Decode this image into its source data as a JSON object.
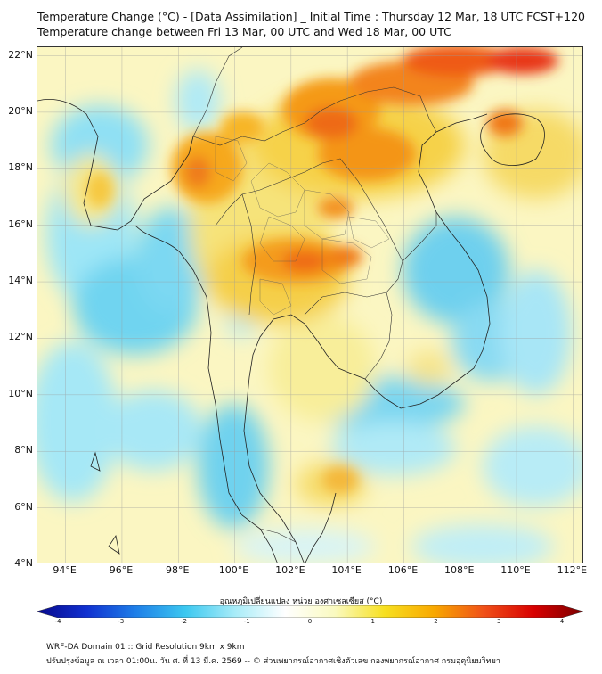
{
  "title_line1": "Temperature Change (°C) - [Data Assimilation] _ Initial Time : Thursday 12 Mar, 18 UTC FCST+120",
  "title_line2": "Temperature change between Fri 13 Mar, 00 UTC and Wed 18 Mar, 00 UTC",
  "map": {
    "lat_labels": [
      "22°N",
      "20°N",
      "18°N",
      "16°N",
      "14°N",
      "12°N",
      "10°N",
      "8°N",
      "6°N",
      "4°N"
    ],
    "lon_labels": [
      "94°E",
      "96°E",
      "98°E",
      "100°E",
      "102°E",
      "104°E",
      "106°E",
      "108°E",
      "110°E",
      "112°E"
    ],
    "lat_range": [
      4,
      22.3
    ],
    "lon_range": [
      93,
      112.4
    ],
    "grid": true
  },
  "colorbar": {
    "title": "อุณหภูมิเปลี่ยนแปลง หน่วย องศาเซลเซียส (°C)",
    "ticks": [
      "-4",
      "-3",
      "-2",
      "-1",
      "0",
      "1",
      "2",
      "3",
      "4"
    ],
    "range": [
      -4,
      4
    ],
    "colors": [
      "#08088a",
      "#1030d0",
      "#1e7fe8",
      "#3cc8f0",
      "#a8ecf8",
      "#ffffff",
      "#fafac0",
      "#f7e020",
      "#f8a800",
      "#f05018",
      "#d80000",
      "#7a0000"
    ]
  },
  "footer_line1": "WRF-DA Domain 01 :: Grid Resolution 9km x 9km",
  "footer_line2": "ปรับปรุงข้อมูล ณ เวลา 01:00น. วัน ศ. ที่ 13 มี.ค. 2569 -- © ส่วนพยากรณ์อากาศเชิงตัวเลข กองพยากรณ์อากาศ กรมอุตุนิยมวิทยา"
}
